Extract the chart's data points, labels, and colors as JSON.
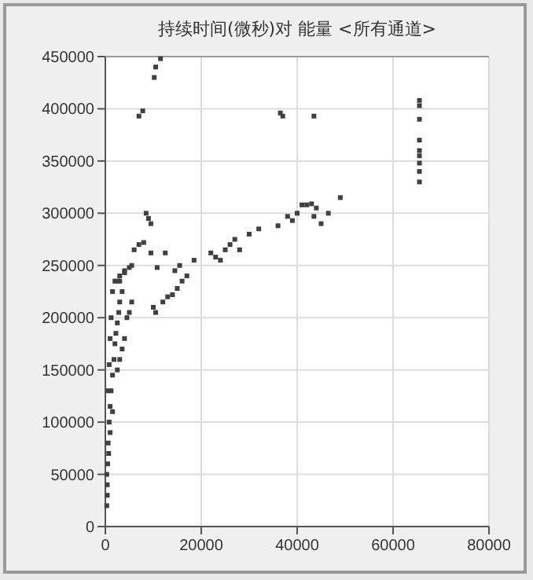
{
  "chart_data": {
    "type": "scatter",
    "title": "持续时间(微秒)对 能量 <所有通道>",
    "marker": "square",
    "grid": true,
    "x": [
      10200,
      10500,
      11500,
      7000,
      7800,
      36500,
      37000,
      43500,
      65500,
      65500,
      65500,
      65500,
      65500,
      65500,
      65500,
      65500,
      65500,
      40000,
      41000,
      42000,
      43000,
      44000,
      39000,
      43500,
      45000,
      46500,
      49000,
      8500,
      9000,
      9500,
      6000,
      7000,
      8000,
      9500,
      12500,
      5500,
      3000,
      4000,
      5000,
      10000,
      10500,
      12000,
      13000,
      14000,
      15000,
      16000,
      17000,
      14500,
      15500,
      18500,
      22000,
      23000,
      24000,
      25000,
      26000,
      27000,
      28000,
      30000,
      32000,
      36000,
      38000,
      10800,
      300,
      400,
      500,
      600,
      800,
      1000,
      1200,
      1500,
      1800,
      2000,
      2200,
      2500,
      2800,
      3000,
      3500,
      2000,
      2500,
      3000,
      1500,
      1200,
      1000,
      800,
      600,
      3500,
      4000,
      4500,
      3000,
      2500,
      1500,
      1000,
      700,
      400,
      300,
      5000,
      4000,
      5500
    ],
    "values": [
      430000,
      440000,
      448000,
      393000,
      398000,
      396000,
      393000,
      393000,
      408000,
      403000,
      390000,
      370000,
      360000,
      355000,
      348000,
      340000,
      330000,
      300000,
      308000,
      308000,
      309000,
      305000,
      293000,
      297000,
      290000,
      300000,
      315000,
      300000,
      295000,
      290000,
      265000,
      270000,
      272000,
      262000,
      262000,
      250000,
      240000,
      243000,
      248000,
      210000,
      205000,
      215000,
      220000,
      222000,
      228000,
      235000,
      240000,
      245000,
      250000,
      255000,
      262000,
      258000,
      255000,
      265000,
      270000,
      275000,
      265000,
      280000,
      285000,
      288000,
      297000,
      248000,
      20000,
      40000,
      60000,
      80000,
      100000,
      115000,
      130000,
      145000,
      160000,
      175000,
      185000,
      195000,
      205000,
      215000,
      225000,
      235000,
      235000,
      235000,
      225000,
      200000,
      180000,
      155000,
      130000,
      170000,
      180000,
      200000,
      160000,
      150000,
      110000,
      90000,
      70000,
      30000,
      50000,
      205000,
      245000,
      215000
    ],
    "color": "#404040",
    "xlim": [
      0,
      80000
    ],
    "ylim": [
      0,
      450000
    ],
    "xticks": [
      0,
      20000,
      40000,
      60000,
      80000
    ],
    "yticks": [
      0,
      50000,
      100000,
      150000,
      200000,
      250000,
      300000,
      350000,
      400000,
      450000
    ]
  }
}
